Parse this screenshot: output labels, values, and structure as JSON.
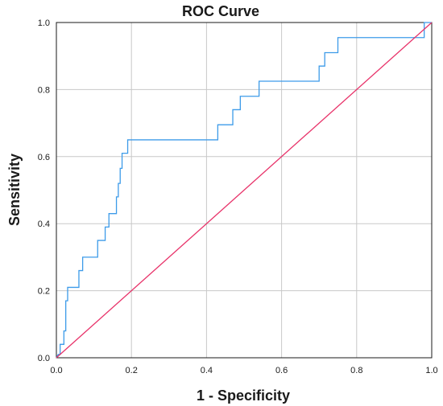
{
  "chart_data": {
    "type": "line",
    "title": "ROC Curve",
    "xlabel": "1 - Specificity",
    "ylabel": "Sensitivity",
    "xlim": [
      0,
      1
    ],
    "ylim": [
      0,
      1
    ],
    "x_ticks": [
      "0.0",
      "0.2",
      "0.4",
      "0.6",
      "0.8",
      "1.0"
    ],
    "y_ticks": [
      "0.0",
      "0.2",
      "0.4",
      "0.6",
      "0.8",
      "1.0"
    ],
    "grid": true,
    "series": [
      {
        "color": "#3d9be9",
        "x": [
          0,
          0.005,
          0.01,
          0.01,
          0.02,
          0.02,
          0.025,
          0.025,
          0.03,
          0.03,
          0.06,
          0.06,
          0.07,
          0.07,
          0.11,
          0.11,
          0.13,
          0.13,
          0.14,
          0.14,
          0.16,
          0.16,
          0.165,
          0.165,
          0.17,
          0.17,
          0.175,
          0.175,
          0.19,
          0.19,
          0.43,
          0.43,
          0.47,
          0.47,
          0.49,
          0.49,
          0.54,
          0.54,
          0.7,
          0.7,
          0.715,
          0.715,
          0.75,
          0.75,
          0.98,
          0.98,
          1.0
        ],
        "y": [
          0,
          0.01,
          0.01,
          0.04,
          0.04,
          0.08,
          0.08,
          0.17,
          0.17,
          0.21,
          0.21,
          0.26,
          0.26,
          0.3,
          0.3,
          0.35,
          0.35,
          0.39,
          0.39,
          0.43,
          0.43,
          0.48,
          0.48,
          0.52,
          0.52,
          0.565,
          0.565,
          0.61,
          0.61,
          0.65,
          0.65,
          0.695,
          0.695,
          0.74,
          0.74,
          0.78,
          0.78,
          0.825,
          0.825,
          0.87,
          0.87,
          0.91,
          0.91,
          0.955,
          0.955,
          1.0,
          1.0
        ]
      },
      {
        "color": "#e8336a",
        "x": [
          0,
          1
        ],
        "y": [
          0,
          1
        ]
      }
    ]
  }
}
